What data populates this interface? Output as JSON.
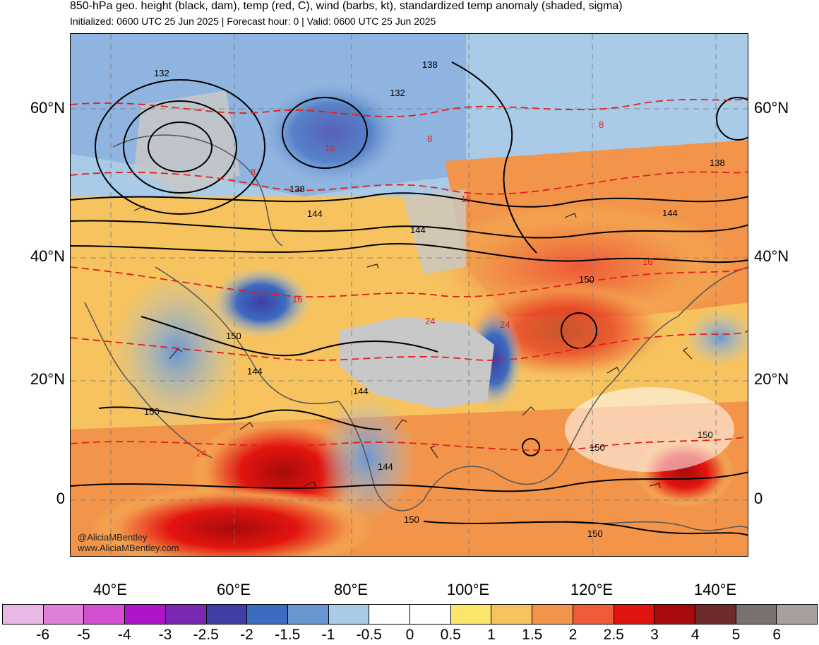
{
  "header": {
    "title": "850-hPa geo. height (black, dam), temp (red, C), wind (barbs, kt), standardized temp anomaly (shaded, sigma)",
    "subtitle": "Initialized: 0600 UTC 25 Jun 2025 | Forecast hour: 0 | Valid: 0600 UTC 25 Jun 2025"
  },
  "axes": {
    "lat_labels": [
      "60°N",
      "40°N",
      "20°N",
      "0"
    ],
    "lon_labels": [
      "40°E",
      "60°E",
      "80°E",
      "100°E",
      "120°E",
      "140°E"
    ]
  },
  "contour_labels": {
    "height": [
      "132",
      "138",
      "132",
      "138",
      "144",
      "144",
      "138",
      "144",
      "150",
      "150",
      "144",
      "150",
      "144",
      "150",
      "150",
      "150",
      "150",
      "144"
    ],
    "temp": [
      "8",
      "16",
      "16",
      "24",
      "24",
      "16",
      "16",
      "8",
      "24",
      "8"
    ]
  },
  "credits": {
    "handle": "@AliciaMBentley",
    "site": "www.AliciaMBentley.com"
  },
  "colorbar": {
    "ticks": [
      "-6",
      "-5",
      "-4",
      "-3",
      "-2.5",
      "-2",
      "-1.5",
      "-1",
      "-0.5",
      "0",
      "0.5",
      "1",
      "1.5",
      "2",
      "2.5",
      "3",
      "4",
      "5",
      "6"
    ],
    "colors": [
      "#e8b7e4",
      "#e07fd8",
      "#d24fd0",
      "#ad16c8",
      "#7a28b4",
      "#3f3ea6",
      "#3d6bbf",
      "#6a96d2",
      "#a9cbe8",
      "#ffffff",
      "#ffffff",
      "#fbe56b",
      "#f6c35f",
      "#f2954a",
      "#ef5a37",
      "#e2140f",
      "#a70b0b",
      "#6e2b2b",
      "#7a706d",
      "#a89e9d"
    ]
  },
  "colors": {
    "height_contour": "#000000",
    "temp_contour": "#e0201b",
    "land_mask": "#c8c8c8",
    "coastline": "#555555"
  }
}
